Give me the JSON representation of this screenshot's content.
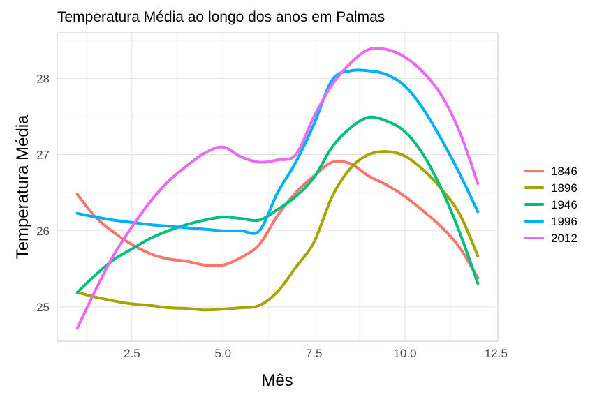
{
  "chart_data": {
    "type": "line",
    "title": "Temperatura Média ao longo dos anos em Palmas",
    "xlabel": "Mês",
    "ylabel": "Temperatura Média",
    "xlim": [
      0.45,
      12.55
    ],
    "ylim": [
      24.55,
      28.6
    ],
    "x_ticks": [
      2.5,
      5.0,
      7.5,
      10.0,
      12.5
    ],
    "x_tick_labels": [
      "2.5",
      "5.0",
      "7.5",
      "10.0",
      "12.5"
    ],
    "y_ticks": [
      25,
      26,
      27,
      28
    ],
    "y_tick_labels": [
      "25",
      "26",
      "27",
      "28"
    ],
    "grid": true,
    "legend_position": "right",
    "x": [
      1,
      1.5,
      2,
      2.5,
      3,
      3.5,
      4,
      4.5,
      5,
      5.5,
      6,
      6.5,
      7,
      7.5,
      8,
      8.5,
      9,
      9.5,
      10,
      10.5,
      11,
      11.5,
      12
    ],
    "series": [
      {
        "name": "1846",
        "color": "#F8766D",
        "values": [
          26.48,
          26.18,
          25.98,
          25.82,
          25.7,
          25.63,
          25.6,
          25.55,
          25.55,
          25.65,
          25.82,
          26.2,
          26.5,
          26.72,
          26.9,
          26.88,
          26.72,
          26.6,
          26.45,
          26.26,
          26.05,
          25.78,
          25.38
        ]
      },
      {
        "name": "1896",
        "color": "#A3A500",
        "values": [
          25.19,
          25.13,
          25.08,
          25.04,
          25.02,
          24.99,
          24.98,
          24.96,
          24.97,
          24.99,
          25.02,
          25.2,
          25.52,
          25.85,
          26.45,
          26.82,
          27.0,
          27.04,
          26.98,
          26.8,
          26.55,
          26.22,
          25.67
        ]
      },
      {
        "name": "1946",
        "color": "#00BF7D",
        "values": [
          25.19,
          25.42,
          25.62,
          25.76,
          25.9,
          26.0,
          26.08,
          26.14,
          26.18,
          26.16,
          26.14,
          26.28,
          26.45,
          26.7,
          27.1,
          27.35,
          27.49,
          27.44,
          27.3,
          27.0,
          26.55,
          25.98,
          25.31
        ]
      },
      {
        "name": "1996",
        "color": "#00B0F6",
        "values": [
          26.23,
          26.18,
          26.14,
          26.11,
          26.08,
          26.06,
          26.04,
          26.02,
          26.0,
          26.0,
          26.0,
          26.5,
          26.9,
          27.4,
          27.98,
          28.1,
          28.1,
          28.05,
          27.9,
          27.6,
          27.2,
          26.75,
          26.25
        ]
      },
      {
        "name": "2012",
        "color": "#E76BF3",
        "values": [
          24.72,
          25.22,
          25.68,
          26.05,
          26.38,
          26.65,
          26.85,
          27.02,
          27.1,
          26.97,
          26.9,
          26.93,
          27.0,
          27.5,
          27.92,
          28.2,
          28.38,
          28.38,
          28.28,
          28.08,
          27.78,
          27.3,
          26.62
        ]
      }
    ]
  }
}
